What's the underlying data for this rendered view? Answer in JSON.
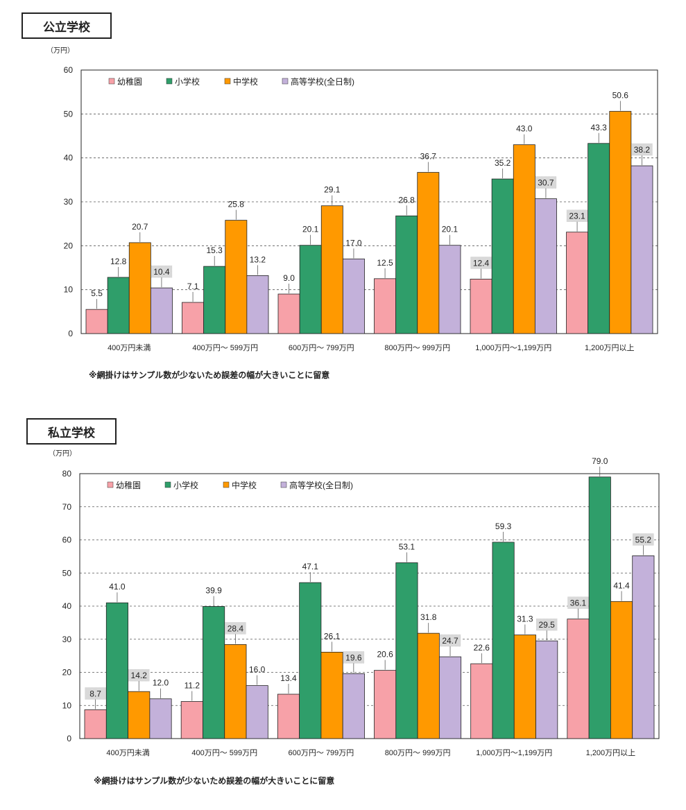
{
  "charts": [
    {
      "section_title": "公立学校",
      "note": "※網掛けはサンプル数が少ないため誤差の幅が大きいことに留意"
    },
    {
      "section_title": "私立学校",
      "note": "※網掛けはサンプル数が少ないため誤差の幅が大きいことに留意"
    }
  ],
  "colors": {
    "kindergarten": "#f7a1a8",
    "elementary": "#2f9e6a",
    "juniorhigh": "#ff9900",
    "highschool": "#c3b1da",
    "shade": "#d9d9d9"
  },
  "chart_data": [
    {
      "type": "bar",
      "title": "公立学校",
      "ylabel": "（万円）",
      "ylim": [
        0,
        60
      ],
      "yticks": [
        0,
        10,
        20,
        30,
        40,
        50,
        60
      ],
      "categories": [
        "400万円未満",
        "400万円～ 599万円",
        "600万円～ 799万円",
        "800万円～ 999万円",
        "1,000万円～1,199万円",
        "1,200万円以上"
      ],
      "series": [
        {
          "name": "幼稚園",
          "values": [
            5.5,
            7.1,
            9.0,
            12.5,
            12.4,
            23.1
          ],
          "labels": [
            "5.5",
            "7.1",
            "9.0",
            "12.5",
            "12.4",
            "23.1"
          ],
          "shaded": [
            false,
            false,
            false,
            false,
            true,
            true
          ]
        },
        {
          "name": "小学校",
          "values": [
            12.8,
            15.3,
            20.1,
            26.8,
            35.2,
            43.3
          ],
          "labels": [
            "12.8",
            "15.3",
            "20.1",
            "26.8",
            "35.2",
            "43.3"
          ],
          "shaded": [
            false,
            false,
            false,
            false,
            false,
            false
          ]
        },
        {
          "name": "中学校",
          "values": [
            20.7,
            25.8,
            29.1,
            36.7,
            43.0,
            50.6
          ],
          "labels": [
            "20.7",
            "25.8",
            "29.1",
            "36.7",
            "43.0",
            "50.6"
          ],
          "shaded": [
            false,
            false,
            false,
            false,
            false,
            false
          ]
        },
        {
          "name": "高等学校(全日制)",
          "values": [
            10.4,
            13.2,
            17.0,
            20.1,
            30.7,
            38.2
          ],
          "labels": [
            "10.4",
            "13.2",
            "17.0",
            "20.1",
            "30.7",
            "38.2"
          ],
          "shaded": [
            true,
            false,
            false,
            false,
            true,
            true
          ]
        }
      ],
      "legend": "top-left"
    },
    {
      "type": "bar",
      "title": "私立学校",
      "ylabel": "（万円）",
      "ylim": [
        0,
        80
      ],
      "yticks": [
        0,
        10,
        20,
        30,
        40,
        50,
        60,
        70,
        80
      ],
      "categories": [
        "400万円未満",
        "400万円～ 599万円",
        "600万円～ 799万円",
        "800万円～ 999万円",
        "1,000万円～1,199万円",
        "1,200万円以上"
      ],
      "series": [
        {
          "name": "幼稚園",
          "values": [
            8.7,
            11.2,
            13.4,
            20.6,
            22.6,
            36.1
          ],
          "labels": [
            "8.7",
            "11.2",
            "13.4",
            "20.6",
            "22.6",
            "36.1"
          ],
          "shaded": [
            true,
            false,
            false,
            false,
            false,
            true
          ]
        },
        {
          "name": "小学校",
          "values": [
            41.0,
            39.9,
            47.1,
            53.1,
            59.3,
            79.0
          ],
          "labels": [
            "41.0",
            "39.9",
            "47.1",
            "53.1",
            "59.3",
            "79.0"
          ],
          "shaded": [
            false,
            false,
            false,
            false,
            false,
            false
          ]
        },
        {
          "name": "中学校",
          "values": [
            14.2,
            28.4,
            26.1,
            31.8,
            31.3,
            41.4
          ],
          "labels": [
            "14.2",
            "28.4",
            "26.1",
            "31.8",
            "31.3",
            "41.4"
          ],
          "shaded": [
            true,
            true,
            false,
            false,
            false,
            false
          ]
        },
        {
          "name": "高等学校(全日制)",
          "values": [
            12.0,
            16.0,
            19.6,
            24.7,
            29.5,
            55.2
          ],
          "labels": [
            "12.0",
            "16.0",
            "19.6",
            "24.7",
            "29.5",
            "55.2"
          ],
          "shaded": [
            false,
            false,
            true,
            true,
            true,
            true
          ]
        }
      ],
      "legend": "top-left"
    }
  ]
}
